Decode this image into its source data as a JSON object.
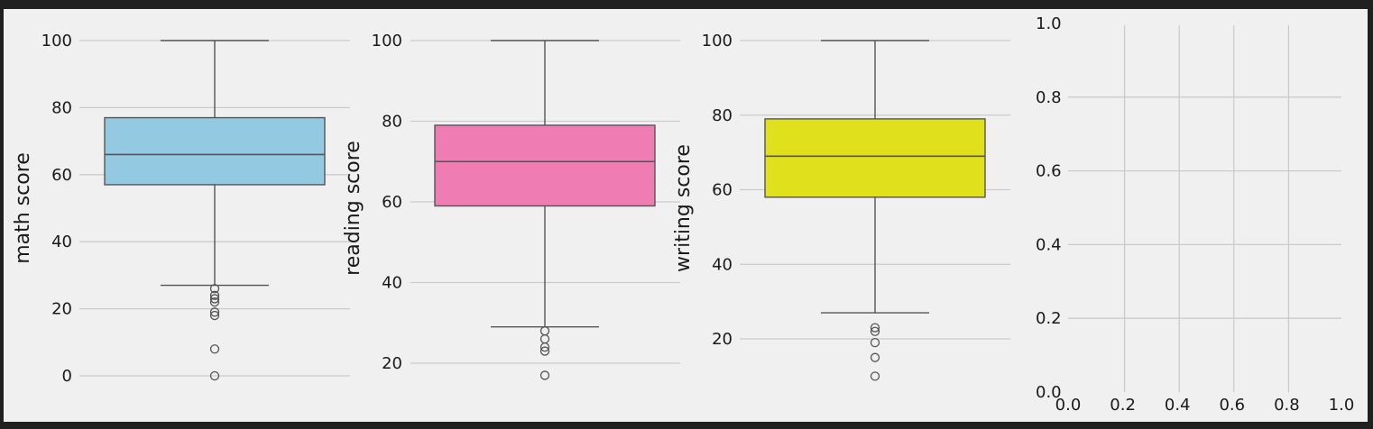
{
  "colors": {
    "frame": "#202020",
    "figure_bg": "#f0f0f0",
    "grid": "#cbcbcb",
    "box_edge": "#555555"
  },
  "chart_data": [
    {
      "type": "box",
      "xlabel": "",
      "ylabel": "math score",
      "ylim": [
        -4,
        104
      ],
      "yticks": [
        0,
        20,
        40,
        60,
        80,
        100
      ],
      "grid": true,
      "color": "#93c9e1",
      "stats": {
        "whisker_low": 27,
        "q1": 57,
        "median": 66,
        "q3": 77,
        "whisker_high": 100
      },
      "outliers": [
        26,
        24,
        23,
        22,
        19,
        18,
        8,
        0
      ]
    },
    {
      "type": "box",
      "xlabel": "",
      "ylabel": "reading score",
      "ylim": [
        13.5,
        104
      ],
      "yticks": [
        20,
        40,
        60,
        80,
        100
      ],
      "grid": true,
      "color": "#ef7db3",
      "stats": {
        "whisker_low": 29,
        "q1": 59,
        "median": 70,
        "q3": 79,
        "whisker_high": 100
      },
      "outliers": [
        28,
        26,
        24,
        23,
        17
      ]
    },
    {
      "type": "box",
      "xlabel": "",
      "ylabel": "writing score",
      "ylim": [
        5.5,
        104
      ],
      "yticks": [
        20,
        40,
        60,
        80,
        100
      ],
      "grid": true,
      "color": "#e0e01c",
      "stats": {
        "whisker_low": 27,
        "q1": 58,
        "median": 69,
        "q3": 79,
        "whisker_high": 100
      },
      "outliers": [
        23,
        22,
        19,
        15,
        10
      ]
    },
    {
      "type": "empty",
      "xlabel": "",
      "ylabel": "",
      "xlim": [
        0,
        1
      ],
      "ylim": [
        0,
        1
      ],
      "xticks": [
        "0.0",
        "0.2",
        "0.4",
        "0.6",
        "0.8",
        "1.0"
      ],
      "yticks": [
        "0.0",
        "0.2",
        "0.4",
        "0.6",
        "0.8",
        "1.0"
      ],
      "grid": true
    }
  ]
}
